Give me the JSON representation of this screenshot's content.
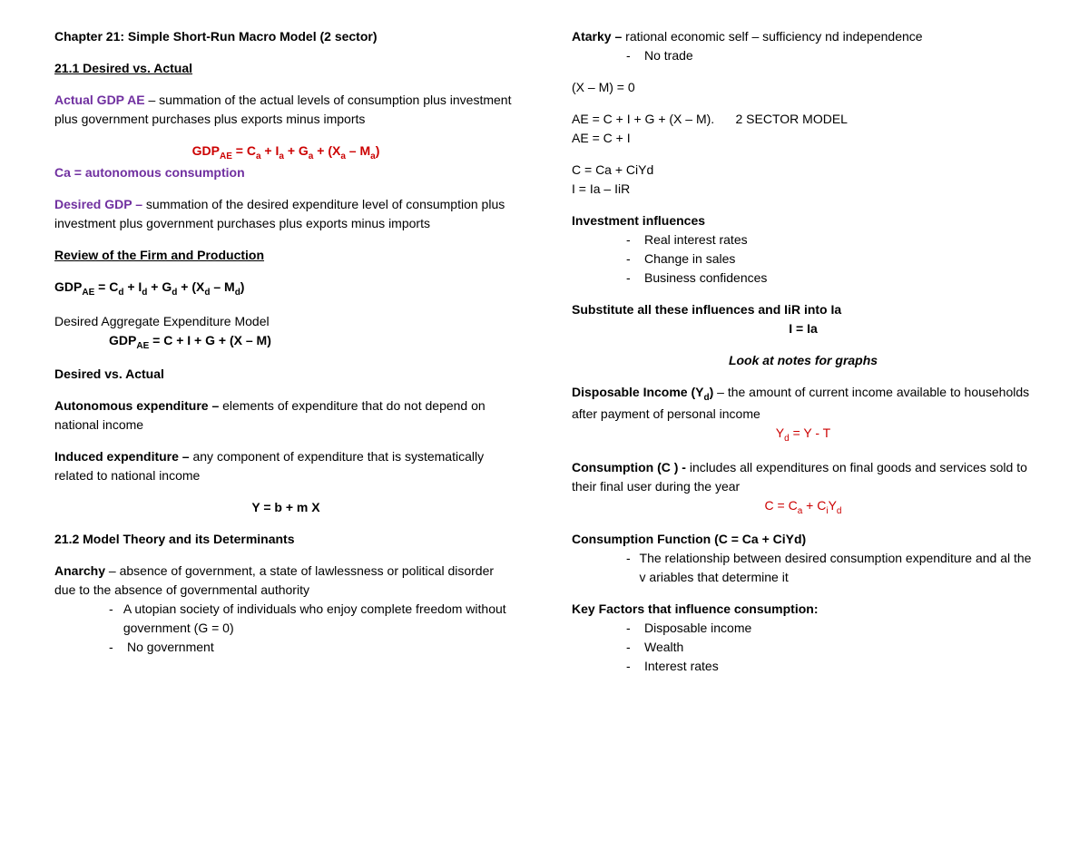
{
  "colors": {
    "text": "#000000",
    "red": "#cc0000",
    "purple": "#7030a0",
    "background": "#ffffff"
  },
  "typography": {
    "body_fontsize": 14,
    "sub_fontsize": 10,
    "font_family": "Arial"
  },
  "L": {
    "title": "Chapter 21: Simple Short-Run Macro Model (2 sector)",
    "h1": "21.1 Desired vs. Actual",
    "actual_label": "Actual GDP AE",
    "actual_def": " – summation of the actual levels of consumption plus investment plus government purchases plus exports minus imports",
    "formula1_pre": "GDP",
    "formula1_sub": "AE",
    "formula1_rest": " = C",
    "formula1_a1": "a",
    "formula1_plus1": " + I",
    "formula1_a2": "a",
    "formula1_plus2": " + G",
    "formula1_a3": "a",
    "formula1_plus3": " +  (X",
    "formula1_a4": "a",
    "formula1_minus": " – M",
    "formula1_a5": "a",
    "formula1_close": ")",
    "ca_line": "Ca = autonomous consumption",
    "desired_label": "Desired GDP –",
    "desired_def": " summation of the desired expenditure level of consumption plus investment plus government purchases plus exports minus imports",
    "review_h": "Review of the Firm and Production",
    "f2_pre": "GDP",
    "f2_sub": "AE",
    "f2_eq": " = C",
    "f2_d1": "d",
    "f2_p1": " + I",
    "f2_d2": "d",
    "f2_p2": " + G",
    "f2_d3": "d",
    "f2_p3": " + (X",
    "f2_d4": "d",
    "f2_m": " – M",
    "f2_d5": "d",
    "f2_close": ")",
    "dae_label": "Desired Aggregate Expenditure Model",
    "f3_pre": "GDP",
    "f3_sub": "AE",
    "f3_rest": " = C + I + G + (X – M)",
    "dva": "Desired vs. Actual",
    "auto_label": "Autonomous expenditure –",
    "auto_def": " elements of expenditure that do not depend on national income",
    "ind_label": "Induced expenditure –",
    "ind_def": " any component of expenditure that is systematically related to national income",
    "ybmx": "Y = b + m X",
    "h2": "21.2 Model Theory and its Determinants",
    "anarchy_label": "Anarchy",
    "anarchy_def": " – absence of government, a state of lawlessness or political disorder due to the absence of governmental authority",
    "anarchy_b1": "A utopian society of individuals who enjoy complete freedom without government (G = 0)",
    "anarchy_b2": "No government"
  },
  "R": {
    "atarky_label": "Atarky –",
    "atarky_def": " rational economic self – sufficiency nd independence",
    "atarky_b1": "No trade",
    "xm0": "(X – M) = 0",
    "ae_full": "AE = C + I + G + (X – M).      2 SECTOR MODEL",
    "ae_ci": "AE = C + I",
    "c_eq": "C = Ca + CiYd",
    "i_eq": "I = Ia – IiR",
    "inv_h": "Investment influences",
    "inv_b1": "Real interest rates",
    "inv_b2": "Change in sales",
    "inv_b3": "Business confidences",
    "sub_line": "Substitute all these influences and IiR into Ia",
    "i_ia": "I = Ia",
    "look_notes": "Look at notes for graphs",
    "disp_label": "Disposable Income (Y",
    "disp_sub": "d",
    "disp_close": ")",
    "disp_def": " – the amount of current income available to households after payment of personal income",
    "yd_pre": "Y",
    "yd_sub": "d",
    "yd_rest": " = Y - T",
    "cons_label": "Consumption (C ) -",
    "cons_def": " includes all expenditures on final goods and services sold to their final user during the year",
    "cformula_pre": "C = C",
    "cformula_a": "a",
    "cformula_mid": " + C",
    "cformula_i": "i",
    "cformula_y": "Y",
    "cformula_d": "d",
    "cfunc_h": "Consumption Function (C = Ca + CiYd)",
    "cfunc_b1": "The relationship between desired consumption expenditure and al the v ariables that determine it",
    "key_h": "Key Factors that influence consumption:",
    "key_b1": "Disposable income",
    "key_b2": "Wealth",
    "key_b3": "Interest rates"
  }
}
